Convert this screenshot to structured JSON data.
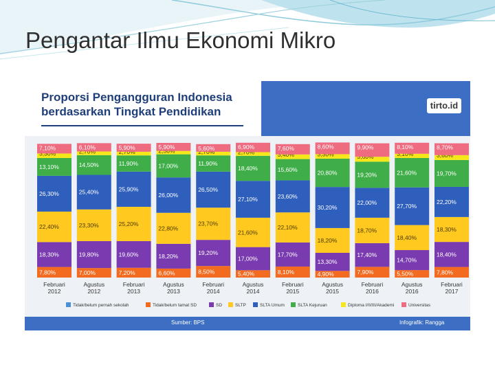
{
  "slide": {
    "title": "Pengantar Ilmu Ekonomi Mikro"
  },
  "infographic": {
    "title_line1": "Proporsi Pengangguran Indonesia",
    "title_line2": "berdasarkan Tingkat Pendidikan",
    "brand": "tirto.id",
    "source": "Sumber: BPS",
    "credit": "Infografik: Rangga"
  },
  "chart_data": {
    "type": "bar",
    "stacked": true,
    "orientation": "vertical",
    "ylim": [
      0,
      100
    ],
    "categories": [
      [
        "Februari",
        "2012"
      ],
      [
        "Agustus",
        "2012"
      ],
      [
        "Februari",
        "2013"
      ],
      [
        "Agustus",
        "2013"
      ],
      [
        "Februari",
        "2014"
      ],
      [
        "Agustus",
        "2014"
      ],
      [
        "Februari",
        "2015"
      ],
      [
        "Agustus",
        "2015"
      ],
      [
        "Februari",
        "2016"
      ],
      [
        "Agustus",
        "2016"
      ],
      [
        "Februari",
        "2017"
      ]
    ],
    "series": [
      {
        "name": "Tidak/belum pernah sekolah",
        "color": "#4a90d9",
        "values": [
          null,
          null,
          null,
          null,
          null,
          null,
          null,
          null,
          null,
          null,
          null
        ],
        "labels": [
          "",
          "",
          "",
          "",
          "",
          "",
          "",
          "",
          "",
          "",
          ""
        ]
      },
      {
        "name": "Tidak/belum tamat SD",
        "color": "#f26b21",
        "values": [
          7.8,
          7.0,
          7.2,
          6.6,
          8.5,
          5.4,
          8.1,
          4.9,
          7.9,
          5.5,
          7.8
        ],
        "labels": [
          "7,80%",
          "7,00%",
          "7,20%",
          "6,60%",
          "8,50%",
          "5,40%",
          "8,10%",
          "4,90%",
          "7,90%",
          "5,50%",
          "7,80%"
        ]
      },
      {
        "name": "SD",
        "color": "#7a3bb0",
        "values": [
          18.3,
          19.8,
          19.6,
          18.2,
          19.2,
          17.0,
          17.7,
          13.3,
          17.4,
          14.7,
          18.4
        ],
        "labels": [
          "18,30%",
          "19,80%",
          "19,60%",
          "18,20%",
          "19,20%",
          "17,00%",
          "17,70%",
          "13,30%",
          "17,40%",
          "14,70%",
          "18,40%"
        ]
      },
      {
        "name": "SLTP",
        "color": "#ffc91f",
        "values": [
          22.4,
          23.3,
          25.2,
          22.8,
          23.7,
          21.6,
          22.1,
          18.2,
          18.7,
          18.4,
          18.3
        ],
        "labels": [
          "22,40%",
          "23,30%",
          "25,20%",
          "22,80%",
          "23,70%",
          "21,60%",
          "22,10%",
          "18,20%",
          "18,70%",
          "18,40%",
          "18,30%"
        ]
      },
      {
        "name": "SLTA Umum",
        "color": "#2f5fbd",
        "values": [
          26.3,
          25.4,
          25.9,
          26.0,
          26.5,
          27.1,
          23.6,
          30.2,
          22.0,
          27.7,
          22.2
        ],
        "labels": [
          "26,30%",
          "25,40%",
          "25,90%",
          "26,00%",
          "26,50%",
          "27,10%",
          "23,60%",
          "30,20%",
          "22,00%",
          "27,70%",
          "22,20%"
        ]
      },
      {
        "name": "SLTA Kejuruan",
        "color": "#3fae49",
        "values": [
          13.1,
          14.5,
          11.9,
          17.0,
          11.9,
          18.4,
          15.6,
          20.8,
          19.2,
          21.6,
          19.7
        ],
        "labels": [
          "13,10%",
          "14,50%",
          "11,90%",
          "17,00%",
          "11,90%",
          "18,40%",
          "15,60%",
          "20,80%",
          "19,20%",
          "21,60%",
          "19,70%"
        ]
      },
      {
        "name": "Diploma I/II/III/Akademi",
        "color": "#f5e71a",
        "values": [
          3.3,
          2.7,
          2.7,
          2.5,
          2.7,
          2.7,
          3.4,
          3.3,
          3.6,
          3.1,
          3.6
        ],
        "labels": [
          "3,30%",
          "2,70%",
          "2,70%",
          "2,50%",
          "2,70%",
          "2,70%",
          "3,40%",
          "3,30%",
          "3,60%",
          "3,10%",
          "3,60%"
        ]
      },
      {
        "name": "Universitas",
        "color": "#ef6b7f",
        "values": [
          7.1,
          6.1,
          5.9,
          5.9,
          5.6,
          6.9,
          7.6,
          8.6,
          9.9,
          8.1,
          8.7
        ],
        "labels": [
          "7,10%",
          "6,10%",
          "5,90%",
          "5,90%",
          "5,60%",
          "6,90%",
          "7,60%",
          "8,60%",
          "9,90%",
          "8,10%",
          "8,70%"
        ]
      }
    ],
    "legend_position": "bottom",
    "grid": false,
    "title": "",
    "xlabel": "",
    "ylabel": ""
  }
}
